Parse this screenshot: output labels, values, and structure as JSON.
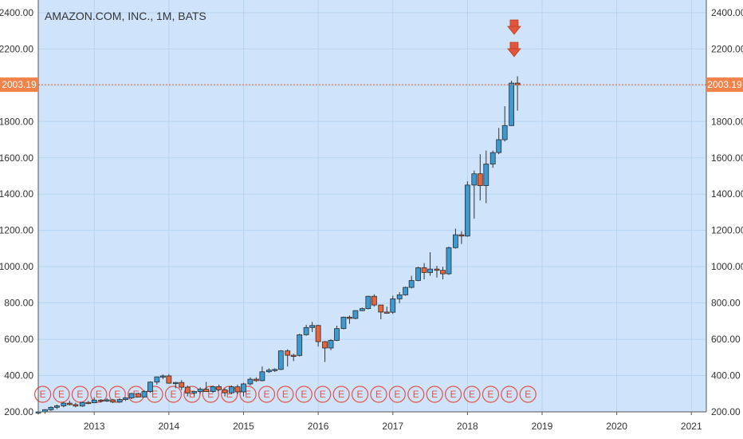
{
  "chart_data": {
    "type": "candlestick",
    "title": "AMAZON.COM, INC., 1M, BATS",
    "ylim": [
      200,
      2470
    ],
    "xlim": [
      2012.25,
      2021.2
    ],
    "y_ticks": [
      "200.00",
      "400.00",
      "600.00",
      "800.00",
      "1000.00",
      "1200.00",
      "1400.00",
      "1600.00",
      "1800.00",
      "2000.00",
      "2200.00",
      "2400.00"
    ],
    "y_tick_values": [
      200,
      400,
      600,
      800,
      1000,
      1200,
      1400,
      1600,
      1800,
      2000,
      2200,
      2400
    ],
    "x_ticks": [
      "2013",
      "2014",
      "2015",
      "2016",
      "2017",
      "2018",
      "2019",
      "2020",
      "2021"
    ],
    "x_tick_values": [
      2013,
      2014,
      2015,
      2016,
      2017,
      2018,
      2019,
      2020,
      2021
    ],
    "last_price": 2003.19,
    "last_price_label": "2003.19",
    "earnings_marker_label": "E",
    "earnings_marker_dates": [
      2012.31,
      2012.56,
      2012.81,
      2013.06,
      2013.31,
      2013.56,
      2013.81,
      2014.06,
      2014.31,
      2014.56,
      2014.81,
      2015.06,
      2015.31,
      2015.56,
      2015.81,
      2016.06,
      2016.31,
      2016.56,
      2016.81,
      2017.06,
      2017.31,
      2017.56,
      2017.81,
      2018.06,
      2018.31,
      2018.56,
      2018.81
    ],
    "split_marker_dates": [
      2018.54
    ],
    "grid": true,
    "candles": [
      {
        "x": 2012.25,
        "o": 195,
        "h": 205,
        "l": 185,
        "c": 200
      },
      {
        "x": 2012.34,
        "o": 200,
        "h": 215,
        "l": 190,
        "c": 212
      },
      {
        "x": 2012.42,
        "o": 212,
        "h": 230,
        "l": 205,
        "c": 225
      },
      {
        "x": 2012.5,
        "o": 225,
        "h": 240,
        "l": 215,
        "c": 233
      },
      {
        "x": 2012.59,
        "o": 233,
        "h": 255,
        "l": 225,
        "c": 248
      },
      {
        "x": 2012.67,
        "o": 248,
        "h": 262,
        "l": 235,
        "c": 240
      },
      {
        "x": 2012.75,
        "o": 240,
        "h": 250,
        "l": 225,
        "c": 232
      },
      {
        "x": 2012.84,
        "o": 232,
        "h": 255,
        "l": 228,
        "c": 252
      },
      {
        "x": 2012.92,
        "o": 252,
        "h": 260,
        "l": 242,
        "c": 250
      },
      {
        "x": 2013.0,
        "o": 250,
        "h": 280,
        "l": 248,
        "c": 265
      },
      {
        "x": 2013.09,
        "o": 265,
        "h": 270,
        "l": 252,
        "c": 262
      },
      {
        "x": 2013.17,
        "o": 262,
        "h": 275,
        "l": 255,
        "c": 266
      },
      {
        "x": 2013.25,
        "o": 266,
        "h": 272,
        "l": 248,
        "c": 254
      },
      {
        "x": 2013.34,
        "o": 254,
        "h": 275,
        "l": 250,
        "c": 268
      },
      {
        "x": 2013.42,
        "o": 268,
        "h": 280,
        "l": 260,
        "c": 277
      },
      {
        "x": 2013.5,
        "o": 277,
        "h": 305,
        "l": 270,
        "c": 301
      },
      {
        "x": 2013.59,
        "o": 301,
        "h": 305,
        "l": 280,
        "c": 282
      },
      {
        "x": 2013.67,
        "o": 282,
        "h": 320,
        "l": 280,
        "c": 312
      },
      {
        "x": 2013.75,
        "o": 312,
        "h": 368,
        "l": 305,
        "c": 364
      },
      {
        "x": 2013.84,
        "o": 364,
        "h": 395,
        "l": 350,
        "c": 393
      },
      {
        "x": 2013.92,
        "o": 393,
        "h": 407,
        "l": 380,
        "c": 398
      },
      {
        "x": 2014.0,
        "o": 398,
        "h": 408,
        "l": 355,
        "c": 358
      },
      {
        "x": 2014.09,
        "o": 358,
        "h": 365,
        "l": 330,
        "c": 362
      },
      {
        "x": 2014.17,
        "o": 362,
        "h": 375,
        "l": 320,
        "c": 336
      },
      {
        "x": 2014.25,
        "o": 336,
        "h": 345,
        "l": 285,
        "c": 304
      },
      {
        "x": 2014.34,
        "o": 304,
        "h": 315,
        "l": 285,
        "c": 312
      },
      {
        "x": 2014.42,
        "o": 312,
        "h": 335,
        "l": 300,
        "c": 325
      },
      {
        "x": 2014.5,
        "o": 325,
        "h": 365,
        "l": 310,
        "c": 312
      },
      {
        "x": 2014.59,
        "o": 312,
        "h": 345,
        "l": 305,
        "c": 339
      },
      {
        "x": 2014.67,
        "o": 339,
        "h": 350,
        "l": 315,
        "c": 322
      },
      {
        "x": 2014.75,
        "o": 322,
        "h": 330,
        "l": 285,
        "c": 305
      },
      {
        "x": 2014.84,
        "o": 305,
        "h": 345,
        "l": 298,
        "c": 338
      },
      {
        "x": 2014.92,
        "o": 338,
        "h": 350,
        "l": 298,
        "c": 310
      },
      {
        "x": 2015.0,
        "o": 310,
        "h": 360,
        "l": 285,
        "c": 354
      },
      {
        "x": 2015.09,
        "o": 354,
        "h": 390,
        "l": 345,
        "c": 380
      },
      {
        "x": 2015.17,
        "o": 380,
        "h": 390,
        "l": 365,
        "c": 372
      },
      {
        "x": 2015.25,
        "o": 372,
        "h": 450,
        "l": 368,
        "c": 421
      },
      {
        "x": 2015.34,
        "o": 421,
        "h": 440,
        "l": 415,
        "c": 430
      },
      {
        "x": 2015.42,
        "o": 430,
        "h": 440,
        "l": 420,
        "c": 434
      },
      {
        "x": 2015.5,
        "o": 434,
        "h": 540,
        "l": 430,
        "c": 536
      },
      {
        "x": 2015.59,
        "o": 536,
        "h": 545,
        "l": 450,
        "c": 512
      },
      {
        "x": 2015.67,
        "o": 512,
        "h": 520,
        "l": 480,
        "c": 511
      },
      {
        "x": 2015.75,
        "o": 511,
        "h": 630,
        "l": 505,
        "c": 625
      },
      {
        "x": 2015.84,
        "o": 625,
        "h": 680,
        "l": 620,
        "c": 665
      },
      {
        "x": 2015.92,
        "o": 665,
        "h": 696,
        "l": 640,
        "c": 676
      },
      {
        "x": 2016.0,
        "o": 676,
        "h": 680,
        "l": 560,
        "c": 587
      },
      {
        "x": 2016.09,
        "o": 587,
        "h": 590,
        "l": 475,
        "c": 552
      },
      {
        "x": 2016.17,
        "o": 552,
        "h": 600,
        "l": 540,
        "c": 594
      },
      {
        "x": 2016.25,
        "o": 594,
        "h": 675,
        "l": 590,
        "c": 659
      },
      {
        "x": 2016.34,
        "o": 659,
        "h": 725,
        "l": 655,
        "c": 722
      },
      {
        "x": 2016.42,
        "o": 722,
        "h": 731,
        "l": 685,
        "c": 715
      },
      {
        "x": 2016.5,
        "o": 715,
        "h": 760,
        "l": 710,
        "c": 758
      },
      {
        "x": 2016.59,
        "o": 758,
        "h": 775,
        "l": 755,
        "c": 769
      },
      {
        "x": 2016.67,
        "o": 769,
        "h": 840,
        "l": 765,
        "c": 837
      },
      {
        "x": 2016.75,
        "o": 837,
        "h": 848,
        "l": 780,
        "c": 789
      },
      {
        "x": 2016.84,
        "o": 789,
        "h": 790,
        "l": 710,
        "c": 750
      },
      {
        "x": 2016.92,
        "o": 750,
        "h": 780,
        "l": 745,
        "c": 749
      },
      {
        "x": 2017.0,
        "o": 749,
        "h": 840,
        "l": 740,
        "c": 823
      },
      {
        "x": 2017.09,
        "o": 823,
        "h": 860,
        "l": 800,
        "c": 845
      },
      {
        "x": 2017.17,
        "o": 845,
        "h": 890,
        "l": 840,
        "c": 886
      },
      {
        "x": 2017.25,
        "o": 886,
        "h": 950,
        "l": 880,
        "c": 924
      },
      {
        "x": 2017.34,
        "o": 924,
        "h": 1000,
        "l": 920,
        "c": 994
      },
      {
        "x": 2017.42,
        "o": 994,
        "h": 1020,
        "l": 930,
        "c": 968
      },
      {
        "x": 2017.5,
        "o": 968,
        "h": 1080,
        "l": 950,
        "c": 987
      },
      {
        "x": 2017.59,
        "o": 987,
        "h": 1005,
        "l": 940,
        "c": 980
      },
      {
        "x": 2017.67,
        "o": 980,
        "h": 1000,
        "l": 930,
        "c": 961
      },
      {
        "x": 2017.75,
        "o": 961,
        "h": 1110,
        "l": 955,
        "c": 1105
      },
      {
        "x": 2017.84,
        "o": 1105,
        "h": 1210,
        "l": 1100,
        "c": 1176
      },
      {
        "x": 2017.92,
        "o": 1176,
        "h": 1195,
        "l": 1125,
        "c": 1169
      },
      {
        "x": 2018.0,
        "o": 1169,
        "h": 1470,
        "l": 1165,
        "c": 1450
      },
      {
        "x": 2018.09,
        "o": 1450,
        "h": 1530,
        "l": 1265,
        "c": 1512
      },
      {
        "x": 2018.17,
        "o": 1512,
        "h": 1620,
        "l": 1365,
        "c": 1447
      },
      {
        "x": 2018.25,
        "o": 1447,
        "h": 1640,
        "l": 1350,
        "c": 1566
      },
      {
        "x": 2018.34,
        "o": 1566,
        "h": 1640,
        "l": 1545,
        "c": 1629
      },
      {
        "x": 2018.42,
        "o": 1629,
        "h": 1765,
        "l": 1620,
        "c": 1700
      },
      {
        "x": 2018.5,
        "o": 1700,
        "h": 1885,
        "l": 1690,
        "c": 1778
      },
      {
        "x": 2018.59,
        "o": 1778,
        "h": 2025,
        "l": 1775,
        "c": 2012
      },
      {
        "x": 2018.67,
        "o": 2012,
        "h": 2050,
        "l": 1860,
        "c": 2003.19
      }
    ]
  }
}
